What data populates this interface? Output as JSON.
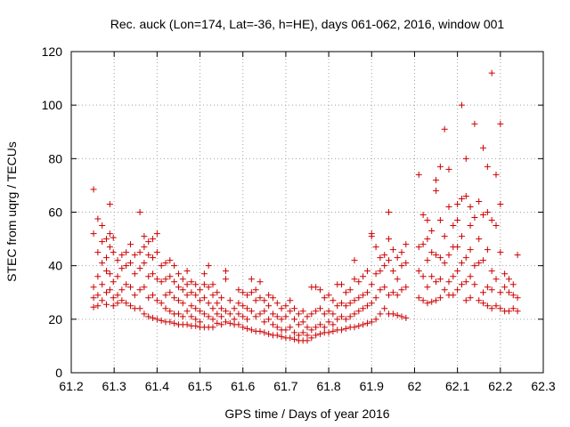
{
  "chart_data": {
    "type": "scatter",
    "title": "Rec. auck (Lon=174, Lat=-36, h=HE), days 061-062, 2016, window 001",
    "xlabel": "GPS time / Days of year 2016",
    "ylabel": "STEC from uqrg / TECUs",
    "xlim": [
      61.2,
      62.3
    ],
    "ylim": [
      0,
      120
    ],
    "xticks": [
      61.2,
      61.3,
      61.4,
      61.5,
      61.6,
      61.7,
      61.8,
      61.9,
      62,
      62.1,
      62.2,
      62.3
    ],
    "xtick_labels": [
      "61.2",
      "61.3",
      "61.4",
      "61.5",
      "61.6",
      "61.7",
      "61.8",
      "61.9",
      "62",
      "62.1",
      "62.2",
      "62.3"
    ],
    "yticks": [
      0,
      20,
      40,
      60,
      80,
      100,
      120
    ],
    "ytick_labels": [
      "0",
      "20",
      "40",
      "60",
      "80",
      "100",
      "120"
    ],
    "grid": true,
    "marker": "plus",
    "color": "#cc0000",
    "points": [
      [
        61.252,
        68.5
      ],
      [
        61.252,
        52
      ],
      [
        61.252,
        32
      ],
      [
        61.252,
        28
      ],
      [
        61.252,
        24.5
      ],
      [
        61.262,
        57.5
      ],
      [
        61.262,
        45
      ],
      [
        61.262,
        36
      ],
      [
        61.262,
        29
      ],
      [
        61.262,
        25
      ],
      [
        61.272,
        55
      ],
      [
        61.272,
        49
      ],
      [
        61.272,
        41
      ],
      [
        61.272,
        33
      ],
      [
        61.272,
        27
      ],
      [
        61.282,
        50
      ],
      [
        61.282,
        43
      ],
      [
        61.282,
        38
      ],
      [
        61.282,
        30
      ],
      [
        61.282,
        25.5
      ],
      [
        61.29,
        63
      ],
      [
        61.29,
        52
      ],
      [
        61.29,
        47
      ],
      [
        61.29,
        37
      ],
      [
        61.29,
        31
      ],
      [
        61.298,
        50.5
      ],
      [
        61.298,
        45
      ],
      [
        61.298,
        34
      ],
      [
        61.298,
        28
      ],
      [
        61.298,
        25
      ],
      [
        61.308,
        42
      ],
      [
        61.308,
        36
      ],
      [
        61.308,
        29
      ],
      [
        61.308,
        26
      ],
      [
        61.318,
        44
      ],
      [
        61.318,
        39
      ],
      [
        61.318,
        31
      ],
      [
        61.318,
        27
      ],
      [
        61.328,
        45
      ],
      [
        61.328,
        40
      ],
      [
        61.328,
        33
      ],
      [
        61.328,
        26
      ],
      [
        61.338,
        48
      ],
      [
        61.338,
        41
      ],
      [
        61.338,
        32
      ],
      [
        61.338,
        25
      ],
      [
        61.348,
        44
      ],
      [
        61.348,
        37
      ],
      [
        61.348,
        29
      ],
      [
        61.348,
        24
      ],
      [
        61.36,
        60
      ],
      [
        61.36,
        45
      ],
      [
        61.36,
        39
      ],
      [
        61.36,
        31
      ],
      [
        61.36,
        24
      ],
      [
        61.37,
        51
      ],
      [
        61.37,
        47
      ],
      [
        61.37,
        41
      ],
      [
        61.37,
        32
      ],
      [
        61.37,
        22
      ],
      [
        61.38,
        49
      ],
      [
        61.38,
        44
      ],
      [
        61.38,
        36
      ],
      [
        61.38,
        28
      ],
      [
        61.38,
        21
      ],
      [
        61.39,
        50
      ],
      [
        61.39,
        43
      ],
      [
        61.39,
        37
      ],
      [
        61.39,
        29
      ],
      [
        61.39,
        20.5
      ],
      [
        61.4,
        52
      ],
      [
        61.4,
        45
      ],
      [
        61.4,
        35
      ],
      [
        61.4,
        27
      ],
      [
        61.4,
        20
      ],
      [
        61.41,
        40
      ],
      [
        61.41,
        34
      ],
      [
        61.41,
        26
      ],
      [
        61.41,
        19.5
      ],
      [
        61.42,
        41
      ],
      [
        61.42,
        35
      ],
      [
        61.42,
        29
      ],
      [
        61.42,
        24
      ],
      [
        61.42,
        19
      ],
      [
        61.43,
        42
      ],
      [
        61.43,
        36
      ],
      [
        61.43,
        30
      ],
      [
        61.43,
        23
      ],
      [
        61.43,
        19
      ],
      [
        61.44,
        40
      ],
      [
        61.44,
        34
      ],
      [
        61.44,
        28
      ],
      [
        61.44,
        22
      ],
      [
        61.44,
        18.5
      ],
      [
        61.45,
        37
      ],
      [
        61.45,
        32
      ],
      [
        61.45,
        27
      ],
      [
        61.45,
        22
      ],
      [
        61.45,
        18
      ],
      [
        61.46,
        35
      ],
      [
        61.46,
        31
      ],
      [
        61.46,
        26
      ],
      [
        61.46,
        21
      ],
      [
        61.46,
        18
      ],
      [
        61.47,
        38
      ],
      [
        61.47,
        33
      ],
      [
        61.47,
        29
      ],
      [
        61.47,
        23
      ],
      [
        61.47,
        18
      ],
      [
        61.48,
        34
      ],
      [
        61.48,
        30
      ],
      [
        61.48,
        25
      ],
      [
        61.48,
        21
      ],
      [
        61.48,
        17.5
      ],
      [
        61.49,
        33
      ],
      [
        61.49,
        29
      ],
      [
        61.49,
        24
      ],
      [
        61.49,
        20
      ],
      [
        61.49,
        17.5
      ],
      [
        61.5,
        31
      ],
      [
        61.5,
        27
      ],
      [
        61.5,
        23
      ],
      [
        61.5,
        19
      ],
      [
        61.5,
        17
      ],
      [
        61.51,
        37
      ],
      [
        61.51,
        33
      ],
      [
        61.51,
        28
      ],
      [
        61.51,
        22
      ],
      [
        61.51,
        17
      ],
      [
        61.52,
        40
      ],
      [
        61.52,
        32
      ],
      [
        61.52,
        26
      ],
      [
        61.52,
        21
      ],
      [
        61.52,
        17
      ],
      [
        61.53,
        33
      ],
      [
        61.53,
        29
      ],
      [
        61.53,
        24
      ],
      [
        61.53,
        20
      ],
      [
        61.53,
        17
      ],
      [
        61.54,
        30
      ],
      [
        61.54,
        26
      ],
      [
        61.54,
        22
      ],
      [
        61.54,
        18.5
      ],
      [
        61.55,
        28
      ],
      [
        61.55,
        24
      ],
      [
        61.55,
        21
      ],
      [
        61.55,
        18
      ],
      [
        61.56,
        38
      ],
      [
        61.56,
        35
      ],
      [
        61.56,
        23
      ],
      [
        61.56,
        19
      ],
      [
        61.57,
        27
      ],
      [
        61.57,
        22
      ],
      [
        61.57,
        18.5
      ],
      [
        61.58,
        24
      ],
      [
        61.58,
        20
      ],
      [
        61.58,
        18
      ],
      [
        61.59,
        31
      ],
      [
        61.59,
        26
      ],
      [
        61.59,
        22
      ],
      [
        61.59,
        18
      ],
      [
        61.6,
        30
      ],
      [
        61.6,
        25
      ],
      [
        61.6,
        21
      ],
      [
        61.6,
        17
      ],
      [
        61.61,
        29
      ],
      [
        61.61,
        24
      ],
      [
        61.61,
        20
      ],
      [
        61.61,
        16.5
      ],
      [
        61.62,
        35
      ],
      [
        61.62,
        30
      ],
      [
        61.62,
        23
      ],
      [
        61.62,
        16
      ],
      [
        61.63,
        31
      ],
      [
        61.63,
        27
      ],
      [
        61.63,
        21
      ],
      [
        61.63,
        15.5
      ],
      [
        61.64,
        34
      ],
      [
        61.64,
        28
      ],
      [
        61.64,
        22
      ],
      [
        61.64,
        15.5
      ],
      [
        61.65,
        27
      ],
      [
        61.65,
        23
      ],
      [
        61.65,
        19
      ],
      [
        61.65,
        15
      ],
      [
        61.66,
        29
      ],
      [
        61.66,
        25
      ],
      [
        61.66,
        20
      ],
      [
        61.66,
        14.5
      ],
      [
        61.67,
        28
      ],
      [
        61.67,
        22
      ],
      [
        61.67,
        18
      ],
      [
        61.67,
        14
      ],
      [
        61.68,
        26
      ],
      [
        61.68,
        21
      ],
      [
        61.68,
        17
      ],
      [
        61.68,
        14
      ],
      [
        61.69,
        24
      ],
      [
        61.69,
        20
      ],
      [
        61.69,
        16
      ],
      [
        61.69,
        13.5
      ],
      [
        61.7,
        25
      ],
      [
        61.7,
        21
      ],
      [
        61.7,
        16
      ],
      [
        61.7,
        13
      ],
      [
        61.71,
        27
      ],
      [
        61.71,
        23
      ],
      [
        61.71,
        17
      ],
      [
        61.71,
        13
      ],
      [
        61.72,
        24
      ],
      [
        61.72,
        20
      ],
      [
        61.72,
        15
      ],
      [
        61.72,
        12.5
      ],
      [
        61.73,
        22
      ],
      [
        61.73,
        18
      ],
      [
        61.73,
        14
      ],
      [
        61.73,
        12
      ],
      [
        61.74,
        23
      ],
      [
        61.74,
        19
      ],
      [
        61.74,
        15
      ],
      [
        61.74,
        12
      ],
      [
        61.75,
        21
      ],
      [
        61.75,
        17
      ],
      [
        61.75,
        14
      ],
      [
        61.75,
        12
      ],
      [
        61.76,
        32
      ],
      [
        61.76,
        22
      ],
      [
        61.76,
        16
      ],
      [
        61.76,
        13
      ],
      [
        61.77,
        32
      ],
      [
        61.77,
        23
      ],
      [
        61.77,
        17
      ],
      [
        61.77,
        14
      ],
      [
        61.78,
        31
      ],
      [
        61.78,
        24
      ],
      [
        61.78,
        18
      ],
      [
        61.78,
        14.5
      ],
      [
        61.79,
        28
      ],
      [
        61.79,
        22
      ],
      [
        61.79,
        17
      ],
      [
        61.79,
        15
      ],
      [
        61.8,
        29
      ],
      [
        61.8,
        23
      ],
      [
        61.8,
        19
      ],
      [
        61.8,
        15
      ],
      [
        61.81,
        27
      ],
      [
        61.81,
        22
      ],
      [
        61.81,
        18
      ],
      [
        61.81,
        15.5
      ],
      [
        61.82,
        33
      ],
      [
        61.82,
        25
      ],
      [
        61.82,
        20
      ],
      [
        61.82,
        16
      ],
      [
        61.83,
        33
      ],
      [
        61.83,
        26
      ],
      [
        61.83,
        21
      ],
      [
        61.83,
        16
      ],
      [
        61.84,
        30
      ],
      [
        61.84,
        25
      ],
      [
        61.84,
        20
      ],
      [
        61.84,
        16.5
      ],
      [
        61.85,
        31
      ],
      [
        61.85,
        26
      ],
      [
        61.85,
        21
      ],
      [
        61.85,
        17
      ],
      [
        61.86,
        42
      ],
      [
        61.86,
        35
      ],
      [
        61.86,
        27
      ],
      [
        61.86,
        22
      ],
      [
        61.86,
        17
      ],
      [
        61.87,
        34
      ],
      [
        61.87,
        28
      ],
      [
        61.87,
        23
      ],
      [
        61.87,
        17.5
      ],
      [
        61.88,
        36
      ],
      [
        61.88,
        29
      ],
      [
        61.88,
        24
      ],
      [
        61.88,
        18
      ],
      [
        61.89,
        38
      ],
      [
        61.89,
        30
      ],
      [
        61.89,
        25
      ],
      [
        61.89,
        18.5
      ],
      [
        61.9,
        52
      ],
      [
        61.9,
        51
      ],
      [
        61.9,
        33
      ],
      [
        61.9,
        26
      ],
      [
        61.9,
        19
      ],
      [
        61.91,
        47
      ],
      [
        61.91,
        37
      ],
      [
        61.91,
        28
      ],
      [
        61.91,
        20
      ],
      [
        61.92,
        43
      ],
      [
        61.92,
        38
      ],
      [
        61.92,
        31
      ],
      [
        61.92,
        22
      ],
      [
        61.93,
        44
      ],
      [
        61.93,
        40
      ],
      [
        61.93,
        32
      ],
      [
        61.93,
        24
      ],
      [
        61.94,
        60
      ],
      [
        61.94,
        50
      ],
      [
        61.94,
        42
      ],
      [
        61.94,
        29
      ],
      [
        61.94,
        22
      ],
      [
        61.95,
        46
      ],
      [
        61.95,
        38
      ],
      [
        61.95,
        30
      ],
      [
        61.95,
        22
      ],
      [
        61.96,
        43
      ],
      [
        61.96,
        35
      ],
      [
        61.96,
        29
      ],
      [
        61.96,
        21.5
      ],
      [
        61.97,
        45
      ],
      [
        61.97,
        40
      ],
      [
        61.97,
        31
      ],
      [
        61.97,
        21
      ],
      [
        61.98,
        48
      ],
      [
        61.98,
        41
      ],
      [
        61.98,
        32
      ],
      [
        61.98,
        20.5
      ],
      [
        62.01,
        74
      ],
      [
        62.01,
        47
      ],
      [
        62.01,
        38
      ],
      [
        62.01,
        28
      ],
      [
        62.02,
        59
      ],
      [
        62.02,
        48
      ],
      [
        62.02,
        36
      ],
      [
        62.02,
        27
      ],
      [
        62.03,
        57
      ],
      [
        62.03,
        50
      ],
      [
        62.03,
        42
      ],
      [
        62.03,
        32
      ],
      [
        62.03,
        26
      ],
      [
        62.04,
        53
      ],
      [
        62.04,
        45
      ],
      [
        62.04,
        36
      ],
      [
        62.04,
        26.5
      ],
      [
        62.05,
        72
      ],
      [
        62.05,
        68
      ],
      [
        62.05,
        44
      ],
      [
        62.05,
        34
      ],
      [
        62.05,
        27
      ],
      [
        62.06,
        77
      ],
      [
        62.06,
        57
      ],
      [
        62.06,
        43
      ],
      [
        62.06,
        35
      ],
      [
        62.06,
        28
      ],
      [
        62.07,
        91
      ],
      [
        62.07,
        51
      ],
      [
        62.07,
        41
      ],
      [
        62.07,
        31
      ],
      [
        62.08,
        76
      ],
      [
        62.08,
        62
      ],
      [
        62.08,
        44
      ],
      [
        62.08,
        34
      ],
      [
        62.08,
        29
      ],
      [
        62.09,
        55
      ],
      [
        62.09,
        47
      ],
      [
        62.09,
        36
      ],
      [
        62.09,
        29
      ],
      [
        62.1,
        63
      ],
      [
        62.1,
        57
      ],
      [
        62.1,
        47
      ],
      [
        62.1,
        38
      ],
      [
        62.1,
        31
      ],
      [
        62.11,
        100
      ],
      [
        62.11,
        65
      ],
      [
        62.11,
        51
      ],
      [
        62.11,
        41
      ],
      [
        62.11,
        33
      ],
      [
        62.12,
        80
      ],
      [
        62.12,
        66
      ],
      [
        62.12,
        43
      ],
      [
        62.12,
        34
      ],
      [
        62.12,
        27
      ],
      [
        62.13,
        62
      ],
      [
        62.13,
        55
      ],
      [
        62.13,
        46
      ],
      [
        62.13,
        36
      ],
      [
        62.13,
        28
      ],
      [
        62.14,
        93
      ],
      [
        62.14,
        58
      ],
      [
        62.14,
        40
      ],
      [
        62.14,
        33
      ],
      [
        62.15,
        64
      ],
      [
        62.15,
        50
      ],
      [
        62.15,
        41
      ],
      [
        62.15,
        27
      ],
      [
        62.16,
        84
      ],
      [
        62.16,
        59
      ],
      [
        62.16,
        42
      ],
      [
        62.16,
        30
      ],
      [
        62.16,
        26
      ],
      [
        62.17,
        77
      ],
      [
        62.17,
        60
      ],
      [
        62.17,
        46
      ],
      [
        62.17,
        32
      ],
      [
        62.17,
        25
      ],
      [
        62.18,
        112
      ],
      [
        62.18,
        57
      ],
      [
        62.18,
        38
      ],
      [
        62.18,
        31
      ],
      [
        62.18,
        24
      ],
      [
        62.19,
        74
      ],
      [
        62.19,
        55
      ],
      [
        62.19,
        35
      ],
      [
        62.19,
        25
      ],
      [
        62.2,
        93
      ],
      [
        62.2,
        63
      ],
      [
        62.2,
        45
      ],
      [
        62.2,
        30
      ],
      [
        62.2,
        24
      ],
      [
        62.21,
        37
      ],
      [
        62.21,
        32
      ],
      [
        62.21,
        23
      ],
      [
        62.22,
        35
      ],
      [
        62.22,
        30
      ],
      [
        62.22,
        23
      ],
      [
        62.23,
        33
      ],
      [
        62.23,
        29
      ],
      [
        62.23,
        24
      ],
      [
        62.24,
        44
      ],
      [
        62.24,
        28
      ],
      [
        62.24,
        23
      ]
    ]
  }
}
